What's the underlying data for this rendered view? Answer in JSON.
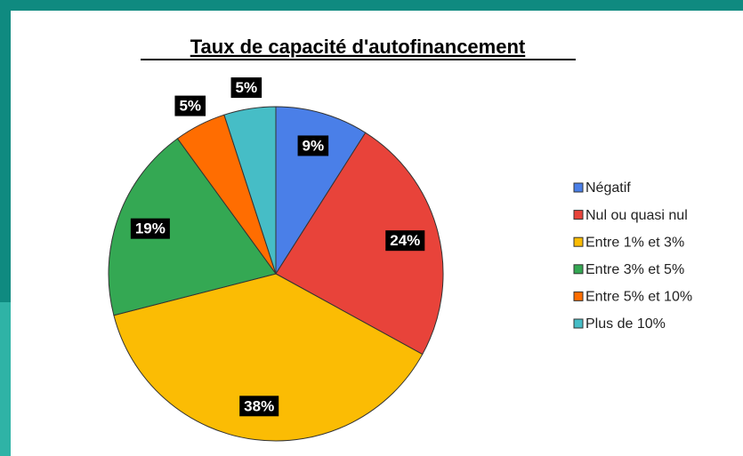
{
  "chart_data": {
    "type": "pie",
    "title": "Taux de capacité d'autofinancement",
    "categories": [
      "Négatif",
      "Nul ou quasi nul",
      "Entre 1% et 3%",
      "Entre 3% et 5%",
      "Entre 5% et 10%",
      "Plus de 10%"
    ],
    "values": [
      9,
      24,
      38,
      19,
      5,
      5
    ],
    "value_labels": [
      "9%",
      "24%",
      "38%",
      "19%",
      "5%",
      "5%"
    ],
    "colors": [
      "#4a7fe8",
      "#e8433a",
      "#fbbc04",
      "#34a853",
      "#ff6d01",
      "#46bdc6"
    ],
    "legend": "right"
  }
}
